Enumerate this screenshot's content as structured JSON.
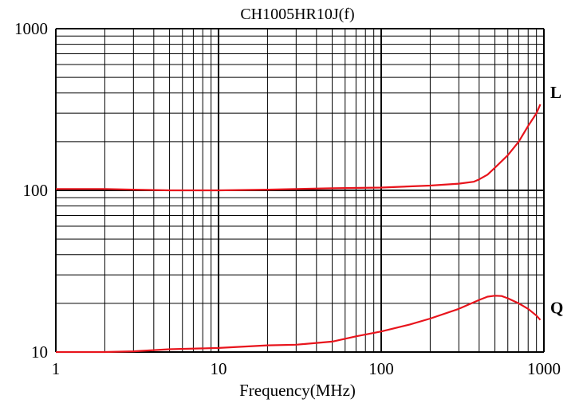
{
  "chart_data": {
    "type": "line",
    "title": "CH1005HR10J(f)",
    "xlabel": "Frequency(MHz)",
    "ylabel": "",
    "x_scale": "log",
    "y_scale": "log",
    "xlim": [
      1,
      1000
    ],
    "ylim": [
      10,
      1000
    ],
    "x_ticks": [
      {
        "value": 1,
        "label": "1"
      },
      {
        "value": 10,
        "label": "10"
      },
      {
        "value": 100,
        "label": "100"
      },
      {
        "value": 1000,
        "label": "1000"
      }
    ],
    "y_ticks": [
      {
        "value": 10,
        "label": "10"
      },
      {
        "value": 100,
        "label": "100"
      },
      {
        "value": 1000,
        "label": "1000"
      }
    ],
    "grid": true,
    "line_color": "#e8141c",
    "series": [
      {
        "name": "L",
        "x": [
          1,
          2,
          3,
          5,
          10,
          20,
          50,
          100,
          200,
          300,
          370,
          400,
          450,
          500,
          600,
          700,
          800,
          900,
          950
        ],
        "y": [
          102,
          102,
          101,
          100,
          100,
          101,
          103,
          104,
          107,
          110,
          113,
          117,
          125,
          138,
          165,
          200,
          250,
          300,
          340
        ]
      },
      {
        "name": "Q",
        "x": [
          1,
          2,
          3,
          5,
          10,
          20,
          30,
          50,
          70,
          100,
          150,
          200,
          300,
          400,
          450,
          500,
          550,
          600,
          700,
          800,
          900,
          950
        ],
        "y": [
          10,
          10,
          10.1,
          10.4,
          10.6,
          11.0,
          11.1,
          11.6,
          12.5,
          13.4,
          14.8,
          16.1,
          18.5,
          21.0,
          22.0,
          22.3,
          22.2,
          21.5,
          20.0,
          18.5,
          16.8,
          15.8
        ]
      }
    ]
  }
}
